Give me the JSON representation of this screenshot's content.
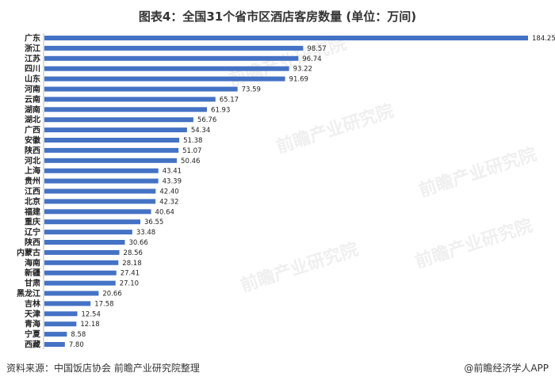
{
  "title": "图表4：全国31个省市区酒店客房数量 (单位：万间)",
  "source": "资料来源：中国饭店协会 前瞻产业研究院整理",
  "brand": "@前瞻经济学人APP",
  "watermark": "前瞻产业研究院",
  "colors": {
    "bar": "#4472C4"
  },
  "chart_data": {
    "type": "bar",
    "orientation": "horizontal",
    "title": "图表4：全国31个省市区酒店客房数量 (单位：万间)",
    "xlabel": "",
    "ylabel": "",
    "grid": false,
    "categories": [
      "广东",
      "浙江",
      "江苏",
      "四川",
      "山东",
      "河南",
      "云南",
      "湖南",
      "湖北",
      "广西",
      "安徽",
      "陕西",
      "河北",
      "上海",
      "贵州",
      "江西",
      "北京",
      "福建",
      "重庆",
      "辽宁",
      "陕西",
      "内蒙古",
      "海南",
      "新疆",
      "甘肃",
      "黑龙江",
      "吉林",
      "天津",
      "青海",
      "宁夏",
      "西藏"
    ],
    "values": [
      184.25,
      98.57,
      96.74,
      93.22,
      91.69,
      73.59,
      65.17,
      61.93,
      56.76,
      54.34,
      51.38,
      51.07,
      50.46,
      43.41,
      43.39,
      42.4,
      42.32,
      40.64,
      36.55,
      33.48,
      30.66,
      28.56,
      28.18,
      27.41,
      27.1,
      20.66,
      17.58,
      12.54,
      12.18,
      8.58,
      7.8
    ],
    "value_labels": [
      "184.25",
      "98.57",
      "96.74",
      "93.22",
      "91.69",
      "73.59",
      "65.17",
      "61.93",
      "56.76",
      "54.34",
      "51.38",
      "51.07",
      "50.46",
      "43.41",
      "43.39",
      "42.40",
      "42.32",
      "40.64",
      "36.55",
      "33.48",
      "30.66",
      "28.56",
      "28.18",
      "27.41",
      "27.10",
      "20.66",
      "17.58",
      "12.54",
      "12.18",
      "8.58",
      "7.80"
    ]
  }
}
